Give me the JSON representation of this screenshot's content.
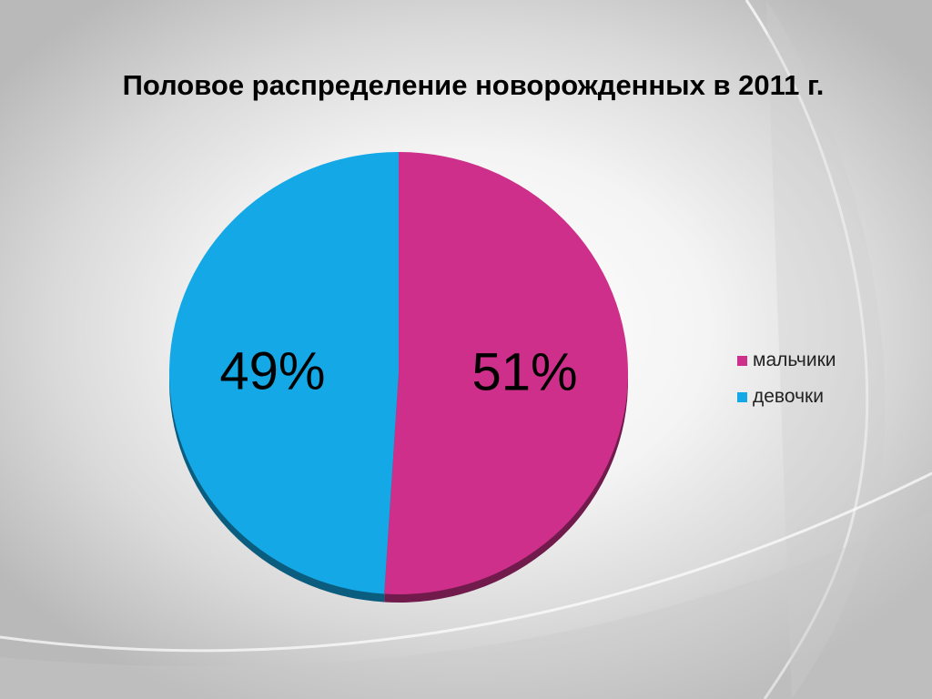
{
  "chart_data": {
    "type": "pie",
    "title": "Половое распределение новорожденных в 2011 г.",
    "categories": [
      "мальчики",
      "девочки"
    ],
    "values": [
      51,
      49
    ],
    "data_labels": [
      "51%",
      "49%"
    ],
    "colors": [
      "#cd2f8a",
      "#14a9e6"
    ],
    "legend_position": "right"
  },
  "colors": {
    "boys": "#cd2f8a",
    "girls": "#14a9e6"
  }
}
